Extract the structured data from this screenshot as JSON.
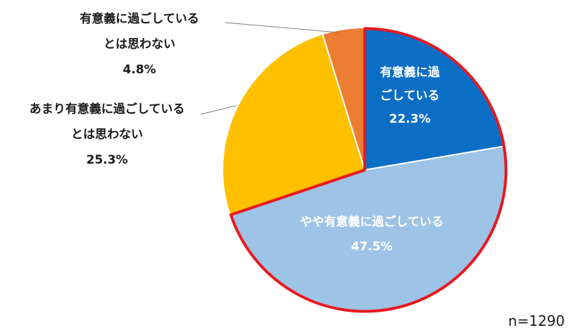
{
  "chart_data": {
    "type": "pie",
    "slices": [
      {
        "label_lines": [
          "有意義に過",
          "ごしている"
        ],
        "value": 22.3,
        "value_text": "22.3%",
        "color": "#0b6ec5",
        "highlight": true
      },
      {
        "label_lines": [
          "やや有意義に過ごしている"
        ],
        "value": 47.5,
        "value_text": "47.5%",
        "color": "#9dc3e6",
        "highlight": true
      },
      {
        "label_lines": [
          "あまり有意義に過ごしている",
          "とは思わない"
        ],
        "value": 25.3,
        "value_text": "25.3%",
        "color": "#ffc000",
        "highlight": false
      },
      {
        "label_lines": [
          "有意義に過ごしている",
          "とは思わない"
        ],
        "value": 4.8,
        "value_text": "4.8%",
        "color": "#ed7d31",
        "highlight": false
      }
    ],
    "highlight_color": "#e8191e",
    "sample_size": "n=1290"
  }
}
